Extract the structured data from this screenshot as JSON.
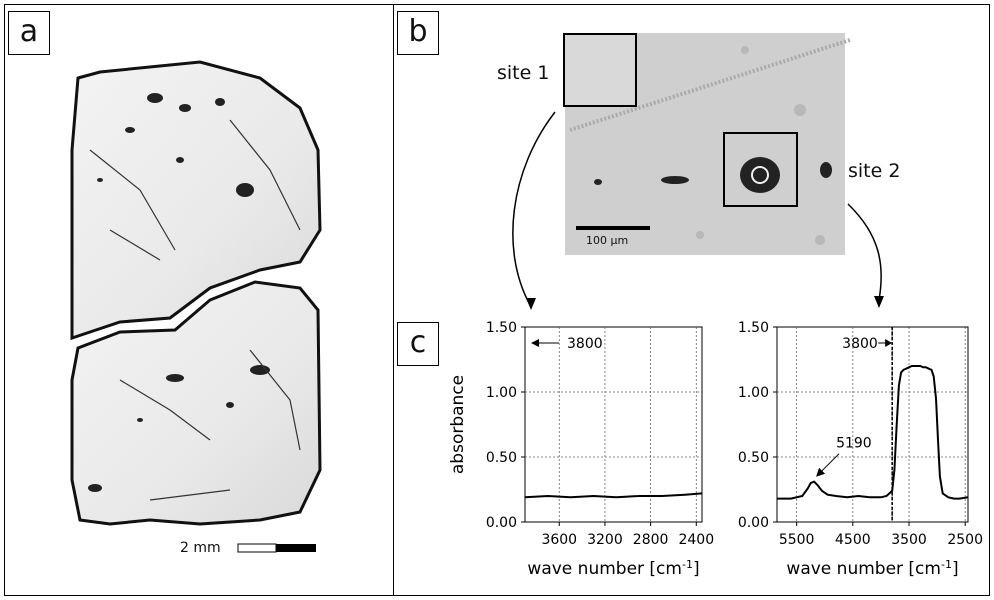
{
  "panels": {
    "a": {
      "label": "a",
      "scale_bar": "2 mm"
    },
    "b": {
      "label": "b",
      "site1": "site 1",
      "site2": "site 2",
      "scale_bar": "100 µm"
    },
    "c": {
      "label": "c"
    }
  },
  "chart_data": [
    {
      "type": "line",
      "title": "",
      "xlabel": "wave number [cm-1]",
      "ylabel": "absorbance",
      "xlim": [
        3900,
        2350
      ],
      "ylim": [
        0,
        1.5
      ],
      "x_reversed": true,
      "x_ticks": [
        "3600",
        "3200",
        "2800",
        "2400"
      ],
      "y_ticks": [
        "0.00",
        "0.50",
        "1.00",
        "1.50"
      ],
      "grid": true,
      "annotations": [
        {
          "text": "3800"
        }
      ],
      "series": [
        {
          "x": [
            3900,
            3700,
            3500,
            3300,
            3100,
            2900,
            2700,
            2500,
            2350
          ],
          "y": [
            0.19,
            0.2,
            0.19,
            0.2,
            0.19,
            0.2,
            0.2,
            0.21,
            0.22
          ]
        }
      ]
    },
    {
      "type": "line",
      "title": "",
      "xlabel": "wave number [cm-1]",
      "ylabel": "",
      "xlim": [
        5850,
        2450
      ],
      "ylim": [
        0,
        1.5
      ],
      "x_reversed": true,
      "x_ticks": [
        "5500",
        "4500",
        "3500",
        "2500"
      ],
      "y_ticks": [
        "0.00",
        "0.50",
        "1.00",
        "1.50"
      ],
      "grid": true,
      "annotations": [
        {
          "text": "3800"
        },
        {
          "text": "5190"
        }
      ],
      "series": [
        {
          "x": [
            5850,
            5600,
            5400,
            5300,
            5250,
            5190,
            5120,
            5050,
            4950,
            4800,
            4600,
            4400,
            4200,
            4000,
            3900,
            3800,
            3760,
            3720,
            3680,
            3640,
            3600,
            3550,
            3500,
            3450,
            3400,
            3350,
            3300,
            3250,
            3200,
            3150,
            3100,
            3060,
            3020,
            2980,
            2950,
            2900,
            2800,
            2700,
            2600,
            2450
          ],
          "y": [
            0.18,
            0.18,
            0.2,
            0.26,
            0.3,
            0.31,
            0.28,
            0.24,
            0.21,
            0.2,
            0.19,
            0.2,
            0.19,
            0.19,
            0.2,
            0.24,
            0.4,
            0.75,
            1.05,
            1.15,
            1.17,
            1.18,
            1.19,
            1.2,
            1.2,
            1.2,
            1.2,
            1.19,
            1.19,
            1.18,
            1.17,
            1.12,
            0.95,
            0.6,
            0.35,
            0.22,
            0.19,
            0.18,
            0.18,
            0.19
          ]
        }
      ]
    }
  ]
}
